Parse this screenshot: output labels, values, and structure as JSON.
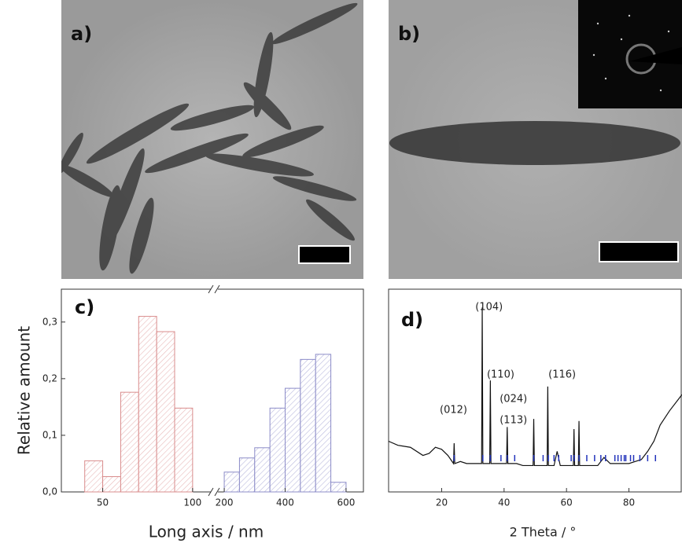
{
  "panels": [
    {
      "label": "a)"
    },
    {
      "label": "b)"
    }
  ],
  "chart_data": [
    {
      "type": "histogram",
      "label": "c)",
      "y_label": "Relative amount",
      "x_label": "Long axis / nm",
      "ylim": [
        0,
        0.358
      ],
      "yticks": [
        {
          "value": 0,
          "label": "0,0"
        },
        {
          "value": 0.1,
          "label": "0,1"
        },
        {
          "value": 0.2,
          "label": "0,2"
        },
        {
          "value": 0.3,
          "label": "0,3"
        }
      ],
      "segments": [
        {
          "xlim": [
            27,
            111
          ],
          "xticks": [
            50,
            100
          ],
          "color": "#d98c8c",
          "bins": [
            40,
            50,
            60,
            70,
            80,
            90,
            100
          ],
          "values": [
            0.055,
            0.027,
            0.176,
            0.31,
            0.283,
            0.148
          ]
        },
        {
          "xlim": [
            174,
            657
          ],
          "xticks": [
            200,
            400,
            600
          ],
          "color": "#8c8cc8",
          "bins": [
            200,
            250,
            300,
            350,
            400,
            450,
            500,
            550,
            600
          ],
          "values": [
            0.035,
            0.06,
            0.078,
            0.148,
            0.183,
            0.234,
            0.243,
            0.017
          ]
        }
      ]
    },
    {
      "type": "line",
      "label": "d)",
      "x_label": "2 Theta / °",
      "xlim": [
        3,
        97
      ],
      "xticks": [
        20,
        40,
        60,
        80
      ],
      "ylim": [
        0,
        100
      ],
      "color": "#111111",
      "x": [
        3,
        6,
        10,
        14,
        16,
        18,
        20,
        22,
        23.8,
        24,
        24.2,
        26,
        28,
        30,
        32,
        32.8,
        33,
        33.2,
        34,
        35.4,
        35.6,
        35.8,
        38,
        40.8,
        41,
        41.2,
        44,
        46,
        49.3,
        49.5,
        49.7,
        52,
        53.8,
        54,
        54.2,
        56,
        57,
        58,
        60,
        62.2,
        62.4,
        62.6,
        63.8,
        64,
        64.2,
        66,
        68,
        70,
        72,
        74,
        76,
        78,
        80,
        82,
        84,
        86,
        88,
        90,
        93,
        97
      ],
      "values": [
        25,
        23,
        22,
        18,
        19,
        22,
        21,
        18,
        14,
        24,
        14,
        15,
        14,
        14,
        14,
        14,
        91,
        14,
        14,
        14,
        55,
        14,
        14,
        14,
        32,
        14,
        14,
        13,
        13,
        36,
        13,
        13,
        13,
        52,
        13,
        13,
        20,
        13,
        13,
        13,
        31,
        13,
        13,
        35,
        13,
        13,
        13,
        13,
        17,
        14,
        14,
        14,
        14,
        15,
        16,
        20,
        25,
        33,
        40,
        48
      ],
      "reference_peaks": {
        "color": "#2233bb",
        "x": [
          24,
          33.2,
          35.6,
          39,
          41,
          43.4,
          49.5,
          52.5,
          54.2,
          56,
          57.5,
          61.5,
          62.4,
          64,
          66.5,
          69,
          71,
          72.5,
          75.5,
          76.5,
          77.5,
          78.5,
          79,
          80.5,
          81.5,
          83.5,
          86,
          88.5
        ]
      },
      "annotations": [
        {
          "text": "(012)",
          "x": 23.8,
          "y": 40.3
        },
        {
          "text": "(104)",
          "x": 35.2,
          "y": 91
        },
        {
          "text": "(110)",
          "x": 38.9,
          "y": 57.8
        },
        {
          "text": "(024)",
          "x": 43,
          "y": 45.7
        },
        {
          "text": "(113)",
          "x": 43,
          "y": 35.3
        },
        {
          "text": "(116)",
          "x": 58.6,
          "y": 57.8
        }
      ]
    }
  ]
}
